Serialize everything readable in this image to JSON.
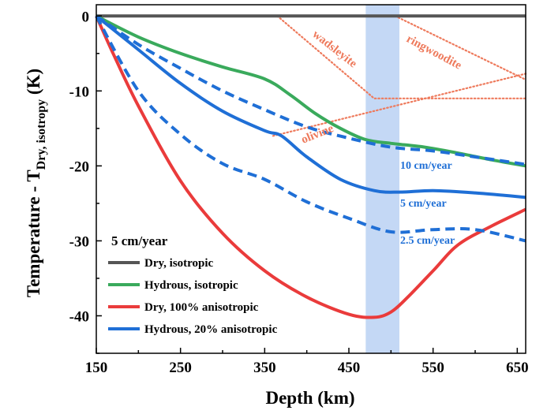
{
  "chart_data": {
    "type": "line",
    "xlabel": "Depth (km)",
    "ylabel_main": "Temperature - T",
    "ylabel_sub": "Dry, isotropy",
    "ylabel_unit": " (K)",
    "xlim": [
      150,
      660
    ],
    "ylim": [
      -45,
      1.5
    ],
    "xticks": [
      150,
      250,
      350,
      450,
      550,
      650
    ],
    "yticks": [
      0,
      -10,
      -20,
      -30,
      -40
    ],
    "transition_band": [
      470,
      510
    ],
    "colors": {
      "dry_isotropic": "#555555",
      "hydrous_isotropic": "#3aaa5c",
      "dry_anisotropic": "#ea3b3b",
      "hydrous_anisotropic": "#1f6fd6",
      "band": "#c4d8f5",
      "phase_lines": "#ee7a5c"
    },
    "legend": {
      "title": "5 cm/year",
      "position": "bottom-left",
      "entries": [
        "Dry, isotropic",
        "Hydrous, isotropic",
        "Dry, 100% anisotropic",
        "Hydrous, 20% anisotropic"
      ]
    },
    "series": [
      {
        "name": "Dry, isotropic",
        "style": "solid",
        "color_key": "dry_isotropic",
        "x": [
          150,
          660
        ],
        "y": [
          0,
          0
        ]
      },
      {
        "name": "Hydrous, isotropic",
        "style": "solid",
        "color_key": "hydrous_isotropic",
        "x": [
          150,
          200,
          250,
          300,
          350,
          380,
          410,
          440,
          470,
          500,
          540,
          580,
          620,
          660
        ],
        "y": [
          0,
          -2.8,
          -5,
          -6.8,
          -8.4,
          -10.5,
          -13,
          -15,
          -16.5,
          -17,
          -17.5,
          -18.3,
          -19.2,
          -20
        ]
      },
      {
        "name": "Dry, 100% anisotropic",
        "style": "solid",
        "color_key": "dry_anisotropic",
        "x": [
          150,
          170,
          200,
          250,
          300,
          350,
          400,
          450,
          480,
          500,
          520,
          550,
          580,
          620,
          660
        ],
        "y": [
          0,
          -5,
          -12,
          -22,
          -29,
          -34,
          -37.5,
          -39.8,
          -40.2,
          -39.5,
          -37.5,
          -34,
          -30.5,
          -28,
          -25.8
        ]
      },
      {
        "name": "Hydrous, 20% anisotropic (5 cm/year)",
        "style": "solid",
        "color_key": "hydrous_anisotropic",
        "x": [
          150,
          200,
          250,
          300,
          350,
          370,
          400,
          440,
          480,
          510,
          550,
          600,
          660
        ],
        "y": [
          0,
          -4.5,
          -9,
          -12.7,
          -15.3,
          -16,
          -18.8,
          -21.8,
          -23.3,
          -23.5,
          -23.3,
          -23.6,
          -24.2
        ]
      },
      {
        "name": "Hydrous, 20% anisotropic (10 cm/year)",
        "style": "dashed",
        "color_key": "hydrous_anisotropic",
        "x": [
          150,
          200,
          250,
          300,
          350,
          400,
          450,
          500,
          550,
          600,
          660
        ],
        "y": [
          0,
          -3.8,
          -7,
          -10,
          -12.5,
          -14.8,
          -16.3,
          -17.5,
          -18,
          -18.8,
          -19.8
        ]
      },
      {
        "name": "Hydrous, 20% anisotropic (2.5 cm/year)",
        "style": "dashed",
        "color_key": "hydrous_anisotropic",
        "x": [
          150,
          200,
          250,
          300,
          350,
          400,
          450,
          500,
          550,
          600,
          660
        ],
        "y": [
          0,
          -10,
          -15.8,
          -19.7,
          -21.8,
          -24.8,
          -27,
          -28.8,
          -28.5,
          -28.5,
          -30
        ]
      }
    ],
    "phase_boundaries": [
      {
        "x": [
          360,
          660
        ],
        "y": [
          -16,
          -7.7
        ]
      },
      {
        "x": [
          365,
          480,
          660
        ],
        "y": [
          0,
          -11,
          -11
        ]
      },
      {
        "x": [
          505,
          660
        ],
        "y": [
          0,
          -8.5
        ]
      }
    ],
    "annotations": {
      "rate_10": "10 cm/year",
      "rate_5": "5 cm/year",
      "rate_2_5": "2.5 cm/year",
      "wadsleyite": "wadsleyite",
      "ringwoodite": "ringwoodite",
      "olivine": "olivine"
    }
  }
}
